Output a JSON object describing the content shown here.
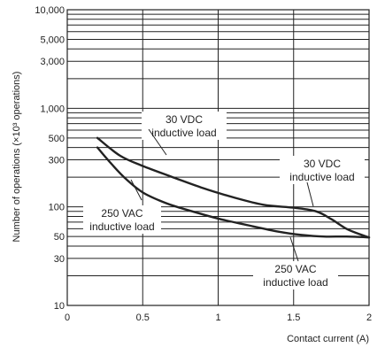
{
  "chart_data": {
    "type": "line",
    "title": "",
    "xlabel": "Contact current (A)",
    "ylabel": "Number of operations (×10³ operations)",
    "xlim": [
      0,
      2
    ],
    "ylim": [
      10,
      10000
    ],
    "yscale": "log",
    "grid": true,
    "x_ticks": [
      {
        "value": 0,
        "label": "0"
      },
      {
        "value": 0.5,
        "label": "0.5"
      },
      {
        "value": 1,
        "label": "1"
      },
      {
        "value": 1.5,
        "label": "1.5"
      },
      {
        "value": 2,
        "label": "2"
      }
    ],
    "y_ticks": [
      {
        "value": 10,
        "label": "10"
      },
      {
        "value": 30,
        "label": "30"
      },
      {
        "value": 50,
        "label": "50"
      },
      {
        "value": 100,
        "label": "100"
      },
      {
        "value": 300,
        "label": "300"
      },
      {
        "value": 500,
        "label": "500"
      },
      {
        "value": 1000,
        "label": "1,000"
      },
      {
        "value": 3000,
        "label": "3,000"
      },
      {
        "value": 5000,
        "label": "5,000"
      },
      {
        "value": 10000,
        "label": "10,000"
      }
    ],
    "series": [
      {
        "name": "30 VDC inductive load",
        "color": "#222222",
        "x": [
          0.2,
          0.35,
          0.5,
          0.7,
          0.9,
          1.1,
          1.3,
          1.5,
          1.65,
          1.75,
          1.85,
          1.95,
          2.0
        ],
        "y": [
          500,
          330,
          260,
          200,
          155,
          125,
          105,
          98,
          90,
          75,
          60,
          52,
          49
        ]
      },
      {
        "name": "250 VAC inductive load",
        "color": "#222222",
        "x": [
          0.2,
          0.3,
          0.4,
          0.5,
          0.6,
          0.7,
          0.85,
          1.0,
          1.2,
          1.4,
          1.55,
          1.7,
          1.85,
          2.0
        ],
        "y": [
          400,
          265,
          185,
          140,
          118,
          103,
          88,
          76,
          65,
          56,
          52,
          50,
          50,
          49
        ]
      }
    ],
    "annotations": [
      {
        "lines": [
          "30 VDC",
          "inductive load"
        ]
      },
      {
        "lines": [
          "30 VDC",
          "inductive load"
        ]
      },
      {
        "lines": [
          "250 VAC",
          "inductive load"
        ]
      },
      {
        "lines": [
          "250 VAC",
          "inductive load"
        ]
      }
    ]
  }
}
